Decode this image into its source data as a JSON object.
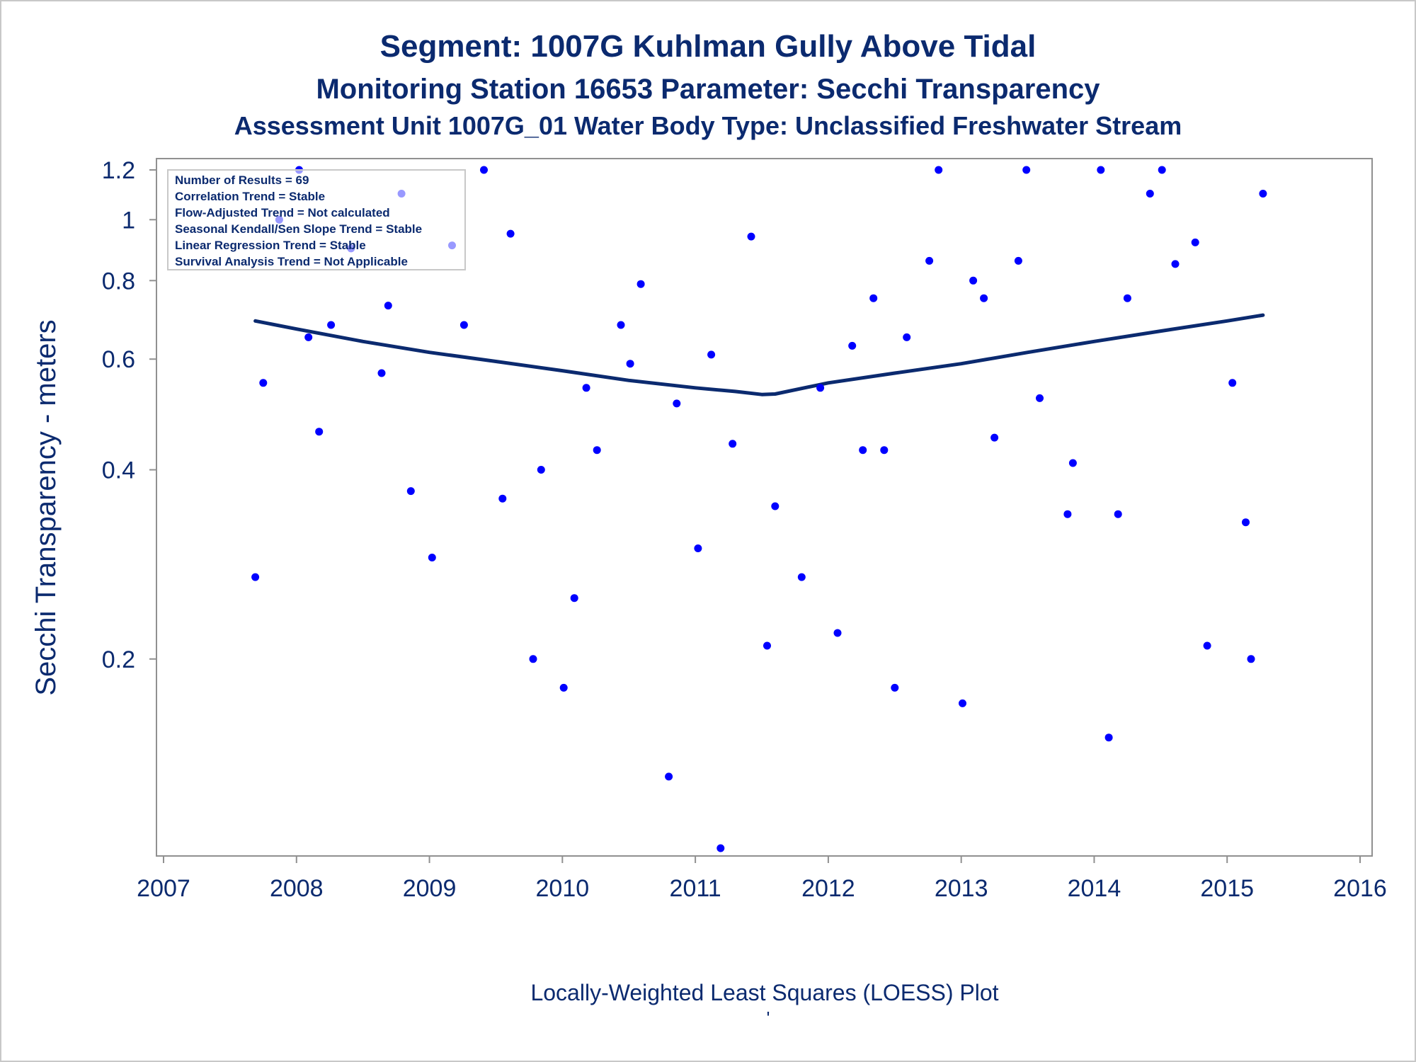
{
  "titles": {
    "line1": "Segment: 1007G  Kuhlman Gully Above Tidal",
    "line2": "Monitoring Station 16653 Parameter: Secchi Transparency",
    "line3": "Assessment Unit 1007G_01   Water Body Type: Unclassified Freshwater Stream"
  },
  "stats": [
    "Number of Results = 69",
    "Correlation Trend = Stable",
    "Flow-Adjusted Trend = Not calculated",
    "Seasonal Kendall/Sen Slope Trend = Stable",
    "Linear Regression Trend = Stable",
    "Survival Analysis Trend = Not Applicable"
  ],
  "footnote": "Locally-Weighted Least Squares (LOESS) Plot",
  "footnote_mark": "'",
  "colors": {
    "text": "#0b2a6f",
    "points": "#0000ff",
    "loess_line": "#0b2a6f",
    "axis": "#909090"
  },
  "chart_data": {
    "type": "scatter",
    "ylabel": "Secchi Transparency - meters",
    "xlabel": "",
    "y_scale": "log",
    "xlim": [
      2007.0,
      2016.0
    ],
    "ylim": [
      0.1,
      1.2
    ],
    "x_ticks": [
      2007,
      2008,
      2009,
      2010,
      2011,
      2012,
      2013,
      2014,
      2015,
      2016
    ],
    "x_tick_labels": [
      "2007",
      "2008",
      "2009",
      "2010",
      "2011",
      "2012",
      "2013",
      "2014",
      "2015",
      "2016"
    ],
    "y_ticks": [
      0.2,
      0.4,
      0.6,
      0.8,
      1.0,
      1.2
    ],
    "y_tick_labels": [
      "0.2",
      "0.4",
      "0.6",
      "0.8",
      "1",
      "1.2"
    ],
    "grid": false,
    "series": [
      {
        "kind": "points",
        "x": [
          2007.69,
          2007.75,
          2007.87,
          2008.02,
          2008.09,
          2008.17,
          2008.26,
          2008.41,
          2008.64,
          2008.69,
          2008.79,
          2008.86,
          2009.02,
          2009.17,
          2009.26,
          2009.41,
          2009.55,
          2009.61,
          2009.78,
          2009.84,
          2010.01,
          2010.09,
          2010.18,
          2010.26,
          2010.44,
          2010.51,
          2010.59,
          2010.8,
          2010.86,
          2011.02,
          2011.12,
          2011.19,
          2011.28,
          2011.42,
          2011.54,
          2011.6,
          2011.8,
          2011.94,
          2012.07,
          2012.18,
          2012.26,
          2012.34,
          2012.42,
          2012.5,
          2012.59,
          2012.76,
          2012.83,
          2013.01,
          2013.09,
          2013.17,
          2013.25,
          2013.43,
          2013.49,
          2013.59,
          2013.8,
          2013.84,
          2014.05,
          2014.11,
          2014.18,
          2014.25,
          2014.42,
          2014.51,
          2014.61,
          2014.76,
          2014.85,
          2015.04,
          2015.14,
          2015.18,
          2015.27
        ],
        "y": [
          0.27,
          0.55,
          1.0,
          1.2,
          0.65,
          0.46,
          0.68,
          0.9,
          0.57,
          0.73,
          1.1,
          0.37,
          0.29,
          0.91,
          0.68,
          1.2,
          0.36,
          0.95,
          0.2,
          0.4,
          0.18,
          0.25,
          0.54,
          0.43,
          0.68,
          0.59,
          0.79,
          0.13,
          0.51,
          0.3,
          0.61,
          0.1,
          0.44,
          0.94,
          0.21,
          0.35,
          0.27,
          0.54,
          0.22,
          0.63,
          0.43,
          0.75,
          0.43,
          0.18,
          0.65,
          0.86,
          1.2,
          0.17,
          0.8,
          0.75,
          0.45,
          0.86,
          1.2,
          0.52,
          0.34,
          0.41,
          1.2,
          0.15,
          0.34,
          0.75,
          1.1,
          1.2,
          0.85,
          0.92,
          0.21,
          0.55,
          0.33,
          0.2,
          1.1
        ]
      },
      {
        "kind": "loess_line",
        "x": [
          2007.69,
          2008.0,
          2008.5,
          2009.0,
          2009.5,
          2010.0,
          2010.5,
          2011.0,
          2011.3,
          2011.5,
          2011.6,
          2012.0,
          2012.5,
          2013.0,
          2013.5,
          2014.0,
          2014.5,
          2015.0,
          2015.27
        ],
        "y": [
          0.69,
          0.67,
          0.64,
          0.615,
          0.595,
          0.575,
          0.555,
          0.54,
          0.533,
          0.527,
          0.528,
          0.55,
          0.57,
          0.59,
          0.615,
          0.64,
          0.665,
          0.69,
          0.705
        ]
      }
    ]
  }
}
